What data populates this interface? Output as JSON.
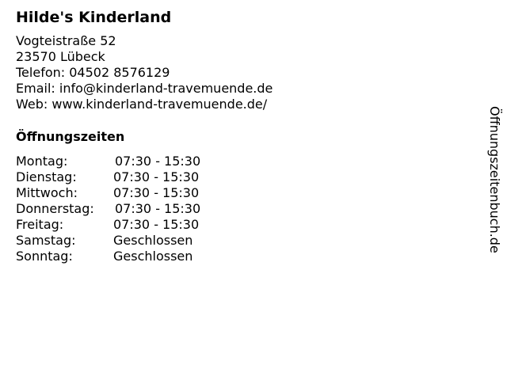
{
  "business": {
    "name": "Hilde's Kinderland",
    "address_lines": [
      "Vogteistraße 52",
      "23570 Lübeck",
      "Telefon: 04502 8576129",
      "Email: info@kinderland-travemuende.de",
      "Web: www.kinderland-travemuende.de/"
    ]
  },
  "hours": {
    "heading": "Öffnungszeiten",
    "rows": [
      {
        "day": "Montag:",
        "time": "07:30 - 15:30"
      },
      {
        "day": "Dienstag:",
        "time": "07:30 - 15:30"
      },
      {
        "day": "Mittwoch:",
        "time": "07:30 - 15:30"
      },
      {
        "day": "Donnerstag:",
        "time": "07:30 - 15:30"
      },
      {
        "day": "Freitag:",
        "time": "07:30 - 15:30"
      },
      {
        "day": "Samstag:",
        "time": "Geschlossen"
      },
      {
        "day": "Sonntag:",
        "time": "Geschlossen"
      }
    ]
  },
  "side_brand": "Öffnungszeitenbuch.de"
}
